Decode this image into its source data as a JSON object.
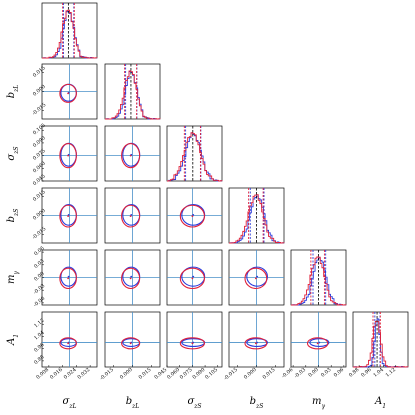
{
  "chart_data": {
    "type": "corner",
    "parameters": [
      {
        "label": "σ_zL",
        "sym": "σ",
        "sub": "zL",
        "range": [
          0.004,
          0.036
        ],
        "truth": 0.02,
        "ticks": [
          "0.008",
          "0.016",
          "0.024",
          "0.032"
        ],
        "tick_values": [
          0.008,
          0.016,
          0.024,
          0.032
        ],
        "blue_mean": 0.0195,
        "blue_sd": 0.003,
        "red_mean": 0.0192,
        "red_sd": 0.0032,
        "blue_quantiles": [
          0.0165,
          0.0225
        ],
        "red_quantiles": [
          0.016,
          0.0228
        ]
      },
      {
        "label": "b_zL",
        "sym": "b",
        "sub": "zL",
        "range": [
          -0.022,
          0.022
        ],
        "truth": 0.0,
        "ticks": [
          "-0.015",
          "0.000",
          "0.015"
        ],
        "tick_values": [
          -0.015,
          0.0,
          0.015
        ],
        "blue_mean": -0.001,
        "blue_sd": 0.0045,
        "red_mean": -0.0015,
        "red_sd": 0.0048,
        "blue_quantiles": [
          -0.0055,
          0.0035
        ],
        "red_quantiles": [
          -0.0063,
          0.0033
        ]
      },
      {
        "label": "σ_zS",
        "sym": "σ",
        "sub": "zS",
        "range": [
          0.045,
          0.11
        ],
        "truth": 0.075,
        "ticks": [
          "0.045",
          "0.060",
          "0.075",
          "0.090",
          "0.105"
        ],
        "tick_values": [
          0.045,
          0.06,
          0.075,
          0.09,
          0.105
        ],
        "blue_mean": 0.076,
        "blue_sd": 0.009,
        "red_mean": 0.075,
        "red_sd": 0.0095,
        "blue_quantiles": [
          0.067,
          0.085
        ],
        "red_quantiles": [
          0.0655,
          0.0845
        ]
      },
      {
        "label": "b_zS",
        "sym": "b",
        "sub": "zS",
        "range": [
          -0.022,
          0.022
        ],
        "truth": 0.0,
        "ticks": [
          "-0.015",
          "0.000",
          "0.015"
        ],
        "tick_values": [
          -0.015,
          0.0,
          0.015
        ],
        "blue_mean": 0.0005,
        "blue_sd": 0.0055,
        "red_mean": -0.0005,
        "red_sd": 0.0058,
        "blue_quantiles": [
          -0.005,
          0.006
        ],
        "red_quantiles": [
          -0.0063,
          0.0053
        ]
      },
      {
        "label": "m_γ",
        "sym": "m",
        "sub": "γ",
        "range": [
          -0.065,
          0.065
        ],
        "truth": 0.0,
        "ticks": [
          "-0.06",
          "-0.03",
          "0.00",
          "0.03",
          "0.06"
        ],
        "tick_values": [
          -0.06,
          -0.03,
          0.0,
          0.03,
          0.06
        ],
        "blue_mean": 0.002,
        "blue_sd": 0.015,
        "red_mean": -0.002,
        "red_sd": 0.016,
        "blue_quantiles": [
          -0.013,
          0.017
        ],
        "red_quantiles": [
          -0.018,
          0.014
        ]
      },
      {
        "label": "A_1",
        "sym": "A",
        "sub": "1",
        "range": [
          0.84,
          1.2
        ],
        "truth": 1.0,
        "ticks": [
          "0.88",
          "0.96",
          "1.04",
          "1.12"
        ],
        "tick_values": [
          0.88,
          0.96,
          1.04,
          1.12
        ],
        "blue_mean": 1.0,
        "blue_sd": 0.017,
        "red_mean": 0.995,
        "red_sd": 0.024,
        "blue_quantiles": [
          0.983,
          1.017
        ],
        "red_quantiles": [
          0.971,
          1.019
        ]
      }
    ],
    "series": [
      {
        "color": "#2a3bdc"
      },
      {
        "color": "#e0203a"
      }
    ],
    "truth_color": "#4a90c8",
    "grid": false,
    "legend": "none"
  }
}
